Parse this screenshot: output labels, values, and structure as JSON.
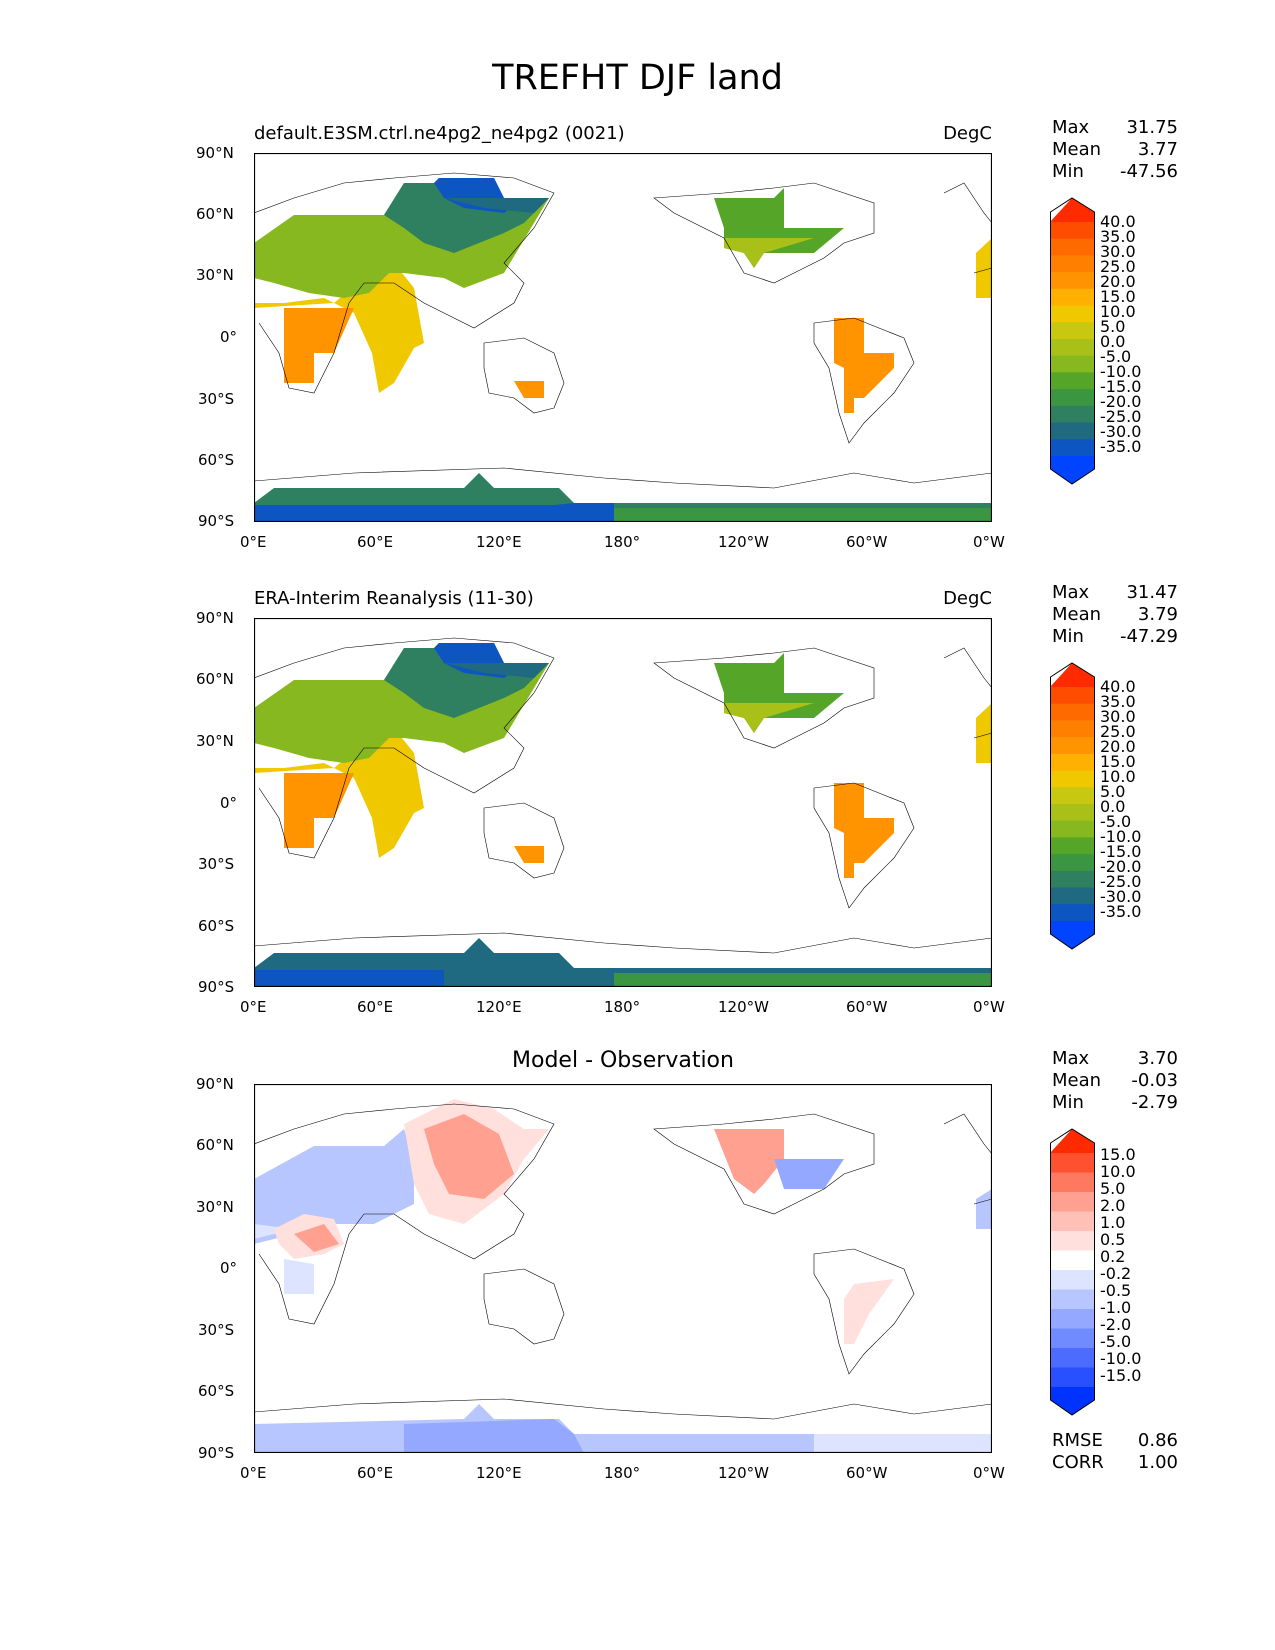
{
  "title": "TREFHT DJF land",
  "lat_labels": [
    "90°N",
    "60°N",
    "30°N",
    "0°",
    "30°S",
    "60°S",
    "90°S"
  ],
  "lon_labels": [
    "0°E",
    "60°E",
    "120°E",
    "180°",
    "120°W",
    "60°W",
    "0°W"
  ],
  "panels": [
    {
      "left_title": "default.E3SM.ctrl.ne4pg2_ne4pg2 (0021)",
      "right_title": "DegC",
      "center_title": "",
      "stats": {
        "max_label": "Max",
        "max": "31.75",
        "mean_label": "Mean",
        "mean": "3.77",
        "min_label": "Min",
        "min": "-47.56"
      },
      "colorbar": [
        "40.0",
        "35.0",
        "30.0",
        "25.0",
        "20.0",
        "15.0",
        "10.0",
        "5.0",
        "0.0",
        "-5.0",
        "-10.0",
        "-15.0",
        "-20.0",
        "-25.0",
        "-30.0",
        "-35.0"
      ]
    },
    {
      "left_title": "ERA-Interim Reanalysis (11-30)",
      "right_title": "DegC",
      "center_title": "",
      "stats": {
        "max_label": "Max",
        "max": "31.47",
        "mean_label": "Mean",
        "mean": "3.79",
        "min_label": "Min",
        "min": "-47.29"
      },
      "colorbar": [
        "40.0",
        "35.0",
        "30.0",
        "25.0",
        "20.0",
        "15.0",
        "10.0",
        "5.0",
        "0.0",
        "-5.0",
        "-10.0",
        "-15.0",
        "-20.0",
        "-25.0",
        "-30.0",
        "-35.0"
      ]
    },
    {
      "left_title": "",
      "right_title": "",
      "center_title": "Model - Observation",
      "stats": {
        "max_label": "Max",
        "max": "3.70",
        "mean_label": "Mean",
        "mean": "-0.03",
        "min_label": "Min",
        "min": "-2.79"
      },
      "colorbar": [
        "15.0",
        "10.0",
        "5.0",
        "2.0",
        "1.0",
        "0.5",
        "0.2",
        "-0.2",
        "-0.5",
        "-1.0",
        "-2.0",
        "-5.0",
        "-10.0",
        "-15.0"
      ],
      "rmse_label": "RMSE",
      "rmse": "0.86",
      "corr_label": "CORR",
      "corr": "1.00"
    }
  ],
  "colors": {
    "temp_scale": [
      "#ff2a00",
      "#ff4d00",
      "#ff6a00",
      "#ff8000",
      "#ff9400",
      "#ffb000",
      "#f0c800",
      "#c8c810",
      "#a8c018",
      "#88b820",
      "#55a528",
      "#3a9640",
      "#2e8060",
      "#1f6a80",
      "#0d55c0",
      "#0044ff"
    ],
    "diff_scale": [
      "#ff2a00",
      "#ff5030",
      "#ff7860",
      "#ffa090",
      "#ffc0b8",
      "#ffe0dc",
      "#ffffff",
      "#dde4ff",
      "#b8c6ff",
      "#94a8ff",
      "#708aff",
      "#4c6cff",
      "#2850ff",
      "#0033ff"
    ]
  }
}
